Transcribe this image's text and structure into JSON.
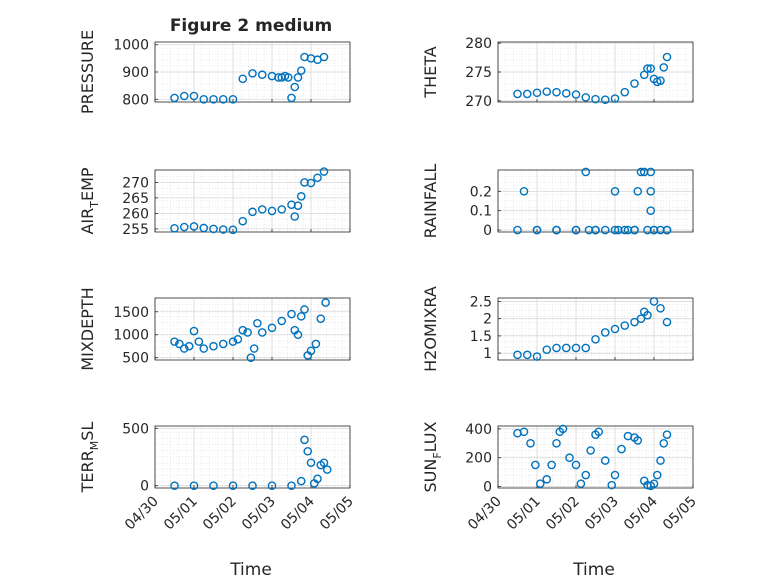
{
  "figure": {
    "title": "Figure 2 medium",
    "xlabel": "Time",
    "x_ticks": [
      "04/30",
      "05/01",
      "05/02",
      "05/03",
      "05/04",
      "05/05"
    ],
    "marker_color": "#0072BD"
  },
  "chart_data": [
    {
      "type": "scatter",
      "id": "pressure",
      "ylabel": "PRESSURE",
      "ylim": [
        790,
        1010
      ],
      "yticks": [
        800,
        900,
        1000
      ],
      "x": [
        "04/30 12:00",
        "04/30 18:00",
        "05/01 00:00",
        "05/01 06:00",
        "05/01 12:00",
        "05/01 18:00",
        "05/02 00:00",
        "05/02 06:00",
        "05/02 12:00",
        "05/02 18:00",
        "05/03 00:00",
        "05/03 04:00",
        "05/03 06:00",
        "05/03 08:00",
        "05/03 10:00",
        "05/03 12:00",
        "05/03 14:00",
        "05/03 16:00",
        "05/03 18:00",
        "05/03 20:00",
        "05/04 00:00",
        "05/04 04:00",
        "05/04 08:00"
      ],
      "y": [
        805,
        812,
        812,
        800,
        800,
        800,
        800,
        875,
        895,
        890,
        885,
        880,
        880,
        885,
        880,
        805,
        845,
        880,
        905,
        955,
        950,
        945,
        955
      ]
    },
    {
      "type": "scatter",
      "id": "theta",
      "ylabel": "THETA",
      "ylim": [
        269.8,
        280.2
      ],
      "yticks": [
        270,
        275,
        280
      ],
      "x": [
        "04/30 12:00",
        "04/30 18:00",
        "05/01 00:00",
        "05/01 06:00",
        "05/01 12:00",
        "05/01 18:00",
        "05/02 00:00",
        "05/02 06:00",
        "05/02 12:00",
        "05/02 18:00",
        "05/03 00:00",
        "05/03 06:00",
        "05/03 12:00",
        "05/03 18:00",
        "05/03 20:00",
        "05/03 22:00",
        "05/04 00:00",
        "05/04 02:00",
        "05/04 04:00",
        "05/04 06:00",
        "05/04 08:00"
      ],
      "y": [
        271.2,
        271.2,
        271.4,
        271.6,
        271.5,
        271.3,
        271.1,
        270.6,
        270.3,
        270.2,
        270.4,
        271.5,
        273.0,
        274.5,
        275.6,
        275.6,
        273.8,
        273.3,
        273.5,
        275.8,
        277.6
      ]
    },
    {
      "type": "scatter",
      "id": "air_temp",
      "ylabel": "AIR_TEMP",
      "ylim": [
        254,
        274
      ],
      "yticks": [
        255,
        260,
        265,
        270
      ],
      "x": [
        "04/30 12:00",
        "04/30 18:00",
        "05/01 00:00",
        "05/01 06:00",
        "05/01 12:00",
        "05/01 18:00",
        "05/02 00:00",
        "05/02 06:00",
        "05/02 12:00",
        "05/02 18:00",
        "05/03 00:00",
        "05/03 06:00",
        "05/03 12:00",
        "05/03 14:00",
        "05/03 16:00",
        "05/03 18:00",
        "05/03 20:00",
        "05/04 00:00",
        "05/04 04:00",
        "05/04 08:00"
      ],
      "y": [
        255.2,
        255.6,
        255.8,
        255.3,
        255.0,
        254.8,
        254.7,
        257.5,
        260.5,
        261.3,
        260.8,
        261.3,
        262.8,
        259.0,
        262.5,
        265.5,
        270.0,
        269.8,
        271.5,
        273.5
      ]
    },
    {
      "type": "scatter",
      "id": "rainfall",
      "ylabel": "RAINFALL",
      "ylim": [
        -0.01,
        0.31
      ],
      "yticks": [
        0,
        0.1,
        0.2
      ],
      "x": [
        "04/30 12:00",
        "04/30 16:00",
        "05/01 00:00",
        "05/01 12:00",
        "05/02 00:00",
        "05/02 06:00",
        "05/02 12:00",
        "05/02 18:00",
        "05/03 00:00",
        "05/03 06:00",
        "05/03 12:00",
        "05/03 14:00",
        "05/03 18:00",
        "05/03 20:00",
        "05/04 00:00",
        "05/04 04:00",
        "05/04 08:00",
        "05/01 00:00",
        "05/01 12:00",
        "05/02 00:00",
        "05/02 12:00",
        "05/03 00:00",
        "05/03 12:00",
        "05/04 00:00",
        "05/04 08:00",
        "05/02 08:00",
        "05/03 02:00",
        "05/03 08:00",
        "05/03 16:00",
        "05/03 22:00",
        "05/03 22:00",
        "05/03 22:00"
      ],
      "y": [
        0,
        0.2,
        0,
        0,
        0,
        0.3,
        0,
        0,
        0.2,
        0,
        0,
        0.2,
        0.3,
        0,
        0,
        0,
        0,
        0,
        0,
        0,
        0,
        0,
        0,
        0,
        0,
        0,
        0,
        0,
        0.3,
        0.3,
        0.2,
        0.1
      ]
    },
    {
      "type": "scatter",
      "id": "mixdepth",
      "ylabel": "MIXDEPTH",
      "ylim": [
        450,
        1800
      ],
      "yticks": [
        500,
        1000,
        1500
      ],
      "x": [
        "04/30 12:00",
        "04/30 15:00",
        "04/30 18:00",
        "04/30 21:00",
        "05/01 00:00",
        "05/01 03:00",
        "05/01 06:00",
        "05/01 12:00",
        "05/01 18:00",
        "05/02 00:00",
        "05/02 03:00",
        "05/02 06:00",
        "05/02 09:00",
        "05/02 11:00",
        "05/02 13:00",
        "05/02 15:00",
        "05/02 18:00",
        "05/03 00:00",
        "05/03 06:00",
        "05/03 12:00",
        "05/03 14:00",
        "05/03 16:00",
        "05/03 18:00",
        "05/03 20:00",
        "05/03 22:00",
        "05/04 00:00",
        "05/04 03:00",
        "05/04 06:00",
        "05/04 09:00"
      ],
      "y": [
        850,
        800,
        700,
        750,
        1080,
        850,
        700,
        750,
        800,
        850,
        900,
        1100,
        1050,
        500,
        700,
        1250,
        1050,
        1150,
        1300,
        1450,
        1100,
        1000,
        1400,
        1550,
        550,
        650,
        800,
        1350,
        1700
      ]
    },
    {
      "type": "scatter",
      "id": "h2omixra",
      "ylabel": "H2OMIXRA",
      "ylim": [
        0.8,
        2.6
      ],
      "yticks": [
        1,
        1.5,
        2,
        2.5
      ],
      "x": [
        "04/30 12:00",
        "04/30 18:00",
        "05/01 00:00",
        "05/01 06:00",
        "05/01 12:00",
        "05/01 18:00",
        "05/02 00:00",
        "05/02 06:00",
        "05/02 12:00",
        "05/02 18:00",
        "05/03 00:00",
        "05/03 06:00",
        "05/03 12:00",
        "05/03 16:00",
        "05/03 18:00",
        "05/03 20:00",
        "05/04 00:00",
        "05/04 04:00",
        "05/04 08:00"
      ],
      "y": [
        0.95,
        0.95,
        0.9,
        1.1,
        1.15,
        1.15,
        1.15,
        1.15,
        1.4,
        1.6,
        1.7,
        1.8,
        1.9,
        2.0,
        2.2,
        2.1,
        2.5,
        2.3,
        1.9
      ]
    },
    {
      "type": "scatter",
      "id": "terr_msl",
      "ylabel": "TERR_MSL",
      "ylim": [
        -20,
        520
      ],
      "yticks": [
        0,
        500
      ],
      "x": [
        "04/30 12:00",
        "05/01 00:00",
        "05/01 12:00",
        "05/02 00:00",
        "05/02 12:00",
        "05/03 00:00",
        "05/03 12:00",
        "05/03 18:00",
        "05/03 20:00",
        "05/03 22:00",
        "05/04 00:00",
        "05/04 02:00",
        "05/04 04:00",
        "05/04 06:00",
        "05/04 08:00",
        "05/04 10:00"
      ],
      "y": [
        0,
        0,
        0,
        0,
        0,
        0,
        0,
        40,
        400,
        300,
        200,
        20,
        60,
        180,
        200,
        140
      ]
    },
    {
      "type": "scatter",
      "id": "sun_flux",
      "ylabel": "SUN_FLUX",
      "ylim": [
        -10,
        420
      ],
      "yticks": [
        0,
        200,
        400
      ],
      "x": [
        "04/30 12:00",
        "04/30 16:00",
        "04/30 20:00",
        "04/30 23:00",
        "05/01 02:00",
        "05/01 06:00",
        "05/01 09:00",
        "05/01 12:00",
        "05/01 14:00",
        "05/01 16:00",
        "05/01 20:00",
        "05/02 00:00",
        "05/02 03:00",
        "05/02 06:00",
        "05/02 09:00",
        "05/02 12:00",
        "05/02 14:00",
        "05/02 18:00",
        "05/02 22:00",
        "05/03 00:00",
        "05/03 04:00",
        "05/03 08:00",
        "05/03 12:00",
        "05/03 14:00",
        "05/03 18:00",
        "05/03 20:00",
        "05/03 22:00",
        "05/04 00:00",
        "05/04 02:00",
        "05/04 04:00",
        "05/04 06:00",
        "05/04 08:00"
      ],
      "y": [
        370,
        380,
        300,
        150,
        20,
        50,
        150,
        300,
        380,
        400,
        200,
        150,
        20,
        80,
        250,
        360,
        380,
        180,
        10,
        80,
        260,
        350,
        340,
        320,
        40,
        10,
        5,
        20,
        80,
        180,
        300,
        360
      ]
    }
  ]
}
